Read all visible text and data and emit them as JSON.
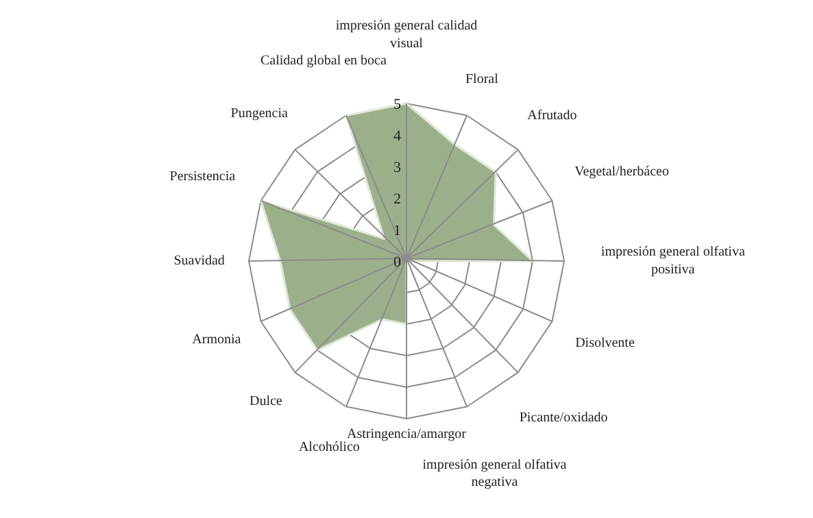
{
  "chart_data": {
    "type": "radar",
    "categories": [
      "impresión general calidad visual",
      "Floral",
      "Afrutado",
      "Vegetal/herbáceo",
      "impresión general olfativa positiva",
      "Disolvente",
      "Picante/oxidado",
      "impresión general olfativa negativa",
      "Astringencia/amargor",
      "Alcohólico",
      "Dulce",
      "Armonia",
      "Suavidad",
      "Persistencia",
      "Pungencia",
      "Calidad global en boca"
    ],
    "series": [
      {
        "color": "#9bb08a",
        "values": [
          5,
          4,
          4,
          3,
          4,
          0,
          0,
          0,
          2,
          2,
          4,
          4,
          4,
          5,
          1,
          5
        ]
      }
    ],
    "ylim": [
      0,
      5
    ],
    "yticks": [
      0,
      1,
      2,
      3,
      4,
      5
    ],
    "grid": true
  }
}
